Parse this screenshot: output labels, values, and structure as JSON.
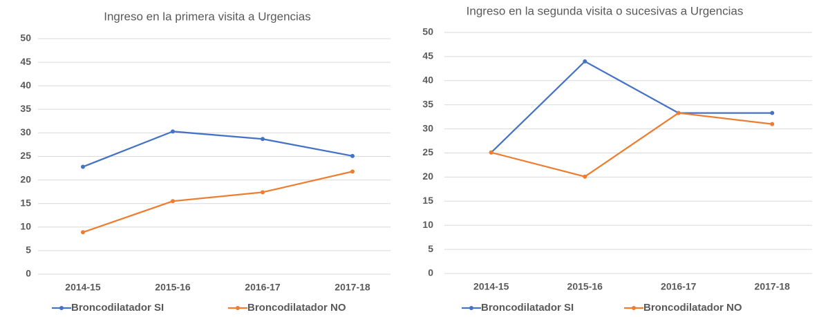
{
  "chart_data": [
    {
      "type": "line",
      "title": "Ingreso en la primera visita a Urgencias",
      "categories": [
        "2014-15",
        "2015-16",
        "2016-17",
        "2017-18"
      ],
      "series": [
        {
          "name": "Broncodilatador SI",
          "color": "#4472c4",
          "values": [
            22.8,
            30.3,
            28.7,
            25.1
          ]
        },
        {
          "name": "Broncodilatador NO",
          "color": "#ed7d31",
          "values": [
            8.9,
            15.5,
            17.4,
            21.8
          ]
        }
      ],
      "ylim": [
        0,
        50
      ],
      "yticks": [
        0,
        5,
        10,
        15,
        20,
        25,
        30,
        35,
        40,
        45,
        50
      ],
      "grid": true,
      "legend": "bottom"
    },
    {
      "type": "line",
      "title": "Ingreso en la segunda visita o sucesivas a Urgencias",
      "categories": [
        "2014-15",
        "2015-16",
        "2016-17",
        "2017-18"
      ],
      "series": [
        {
          "name": "Broncodilatador SI",
          "color": "#4472c4",
          "values": [
            25.1,
            44.0,
            33.3,
            33.3
          ]
        },
        {
          "name": "Broncodilatador NO",
          "color": "#ed7d31",
          "values": [
            25.1,
            20.1,
            33.3,
            31.0
          ]
        }
      ],
      "ylim": [
        0,
        50
      ],
      "yticks": [
        0,
        5,
        10,
        15,
        20,
        25,
        30,
        35,
        40,
        45,
        50
      ],
      "grid": true,
      "legend": "bottom"
    }
  ]
}
